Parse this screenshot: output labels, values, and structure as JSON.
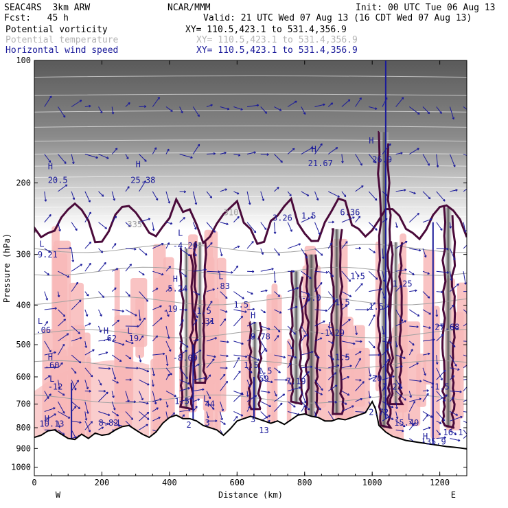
{
  "header": {
    "title": "SEAC4RS  3km ARW",
    "fcst": "Fcst:   45 h",
    "org": "NCAR/MMM",
    "init": "Init: 00 UTC Tue 06 Aug 13",
    "valid": "Valid: 21 UTC Wed 07 Aug 13 (16 CDT Wed 07 Aug 13)",
    "fields": [
      {
        "name": "Potential vorticity",
        "xy": "XY= 110.5,423.1 to 531.4,356.9",
        "color": "#000000"
      },
      {
        "name": "Potential temperature",
        "xy": "XY= 110.5,423.1 to 531.4,356.9",
        "color": "#b4b4b4"
      },
      {
        "name": "Horizontal wind speed",
        "xy": "XY= 110.5,423.1 to 531.4,356.9",
        "color": "#1a1a9a"
      }
    ]
  },
  "colors": {
    "pv_fill": "#f8b8b8",
    "pv_contour": "#4a0a3a",
    "theta": "#a0a0a0",
    "wind": "#1a1a9a",
    "terrain": "#000000"
  },
  "chart_data": {
    "type": "cross-section",
    "xlabel": "Distance (km)",
    "ylabel": "Pressure (hPa)",
    "xlim": [
      0,
      1280
    ],
    "ylim": [
      1050,
      100
    ],
    "y_scale": "log",
    "x_ticks": [
      0,
      200,
      400,
      600,
      800,
      1000,
      1200
    ],
    "y_ticks": [
      100,
      200,
      300,
      400,
      500,
      600,
      700,
      800,
      900,
      1000
    ],
    "end_labels": {
      "left": "W",
      "right": "E"
    },
    "terrain": [
      [
        0,
        845
      ],
      [
        20,
        835
      ],
      [
        40,
        815
      ],
      [
        60,
        810
      ],
      [
        80,
        830
      ],
      [
        100,
        850
      ],
      [
        120,
        855
      ],
      [
        140,
        830
      ],
      [
        160,
        850
      ],
      [
        180,
        825
      ],
      [
        200,
        835
      ],
      [
        220,
        830
      ],
      [
        240,
        810
      ],
      [
        260,
        795
      ],
      [
        280,
        790
      ],
      [
        300,
        810
      ],
      [
        320,
        830
      ],
      [
        340,
        845
      ],
      [
        360,
        820
      ],
      [
        380,
        780
      ],
      [
        400,
        755
      ],
      [
        420,
        745
      ],
      [
        440,
        760
      ],
      [
        460,
        760
      ],
      [
        480,
        770
      ],
      [
        500,
        790
      ],
      [
        520,
        800
      ],
      [
        540,
        810
      ],
      [
        560,
        835
      ],
      [
        580,
        805
      ],
      [
        600,
        770
      ],
      [
        620,
        760
      ],
      [
        640,
        750
      ],
      [
        660,
        760
      ],
      [
        680,
        770
      ],
      [
        700,
        780
      ],
      [
        720,
        770
      ],
      [
        740,
        785
      ],
      [
        760,
        765
      ],
      [
        780,
        745
      ],
      [
        800,
        740
      ],
      [
        820,
        750
      ],
      [
        840,
        755
      ],
      [
        860,
        770
      ],
      [
        880,
        770
      ],
      [
        900,
        760
      ],
      [
        920,
        765
      ],
      [
        940,
        755
      ],
      [
        960,
        745
      ],
      [
        980,
        735
      ],
      [
        1000,
        690
      ],
      [
        1010,
        720
      ],
      [
        1020,
        790
      ],
      [
        1040,
        820
      ],
      [
        1060,
        840
      ],
      [
        1080,
        850
      ],
      [
        1100,
        860
      ],
      [
        1120,
        865
      ],
      [
        1140,
        870
      ],
      [
        1160,
        875
      ],
      [
        1180,
        880
      ],
      [
        1200,
        885
      ],
      [
        1220,
        890
      ],
      [
        1240,
        893
      ],
      [
        1260,
        897
      ],
      [
        1280,
        902
      ]
    ],
    "annotations": [
      {
        "text": "H",
        "x": 40,
        "p": 185
      },
      {
        "text": "20.5",
        "x": 40,
        "p": 200
      },
      {
        "text": "H",
        "x": 300,
        "p": 183
      },
      {
        "text": "25.38",
        "x": 285,
        "p": 200
      },
      {
        "text": "H",
        "x": 820,
        "p": 168
      },
      {
        "text": "21.67",
        "x": 810,
        "p": 182
      },
      {
        "text": "H",
        "x": 990,
        "p": 160
      },
      {
        "text": "26.9",
        "x": 1000,
        "p": 178
      },
      {
        "text": "3.26",
        "x": 705,
        "p": 248
      },
      {
        "text": "1.5",
        "x": 790,
        "p": 245
      },
      {
        "text": "6.36",
        "x": 905,
        "p": 240
      },
      {
        "text": "L",
        "x": 15,
        "p": 287
      },
      {
        "text": "9.21",
        "x": 10,
        "p": 305
      },
      {
        "text": "L",
        "x": 425,
        "p": 270
      },
      {
        "text": "-4.20",
        "x": 410,
        "p": 290
      },
      {
        "text": "H",
        "x": 410,
        "p": 350
      },
      {
        "text": "5.24",
        "x": 395,
        "p": 370
      },
      {
        "text": "L",
        "x": 545,
        "p": 345
      },
      {
        "text": ".83",
        "x": 535,
        "p": 365
      },
      {
        "text": "1.5",
        "x": 935,
        "p": 345
      },
      {
        "text": "1.25",
        "x": 1060,
        "p": 360
      },
      {
        "text": "-4.0",
        "x": 790,
        "p": 390
      },
      {
        "text": "1.5",
        "x": 890,
        "p": 400
      },
      {
        "text": "1.5",
        "x": 590,
        "p": 405
      },
      {
        "text": ".19",
        "x": 380,
        "p": 415
      },
      {
        "text": "1.5",
        "x": 480,
        "p": 420
      },
      {
        "text": "1.5",
        "x": 990,
        "p": 410
      },
      {
        "text": ".31",
        "x": 490,
        "p": 445
      },
      {
        "text": "L",
        "x": 10,
        "p": 445
      },
      {
        "text": ".06",
        "x": 5,
        "p": 468
      },
      {
        "text": "H",
        "x": 640,
        "p": 430
      },
      {
        "text": "9.78",
        "x": 640,
        "p": 485
      },
      {
        "text": "L",
        "x": 870,
        "p": 455
      },
      {
        "text": "-1.29",
        "x": 845,
        "p": 475
      },
      {
        "text": "27.68",
        "x": 1185,
        "p": 460
      },
      {
        "text": "H",
        "x": 205,
        "p": 470
      },
      {
        "text": ".62",
        "x": 200,
        "p": 490
      },
      {
        "text": "L",
        "x": 275,
        "p": 470
      },
      {
        "text": ".19",
        "x": 265,
        "p": 490
      },
      {
        "text": "H",
        "x": 40,
        "p": 545
      },
      {
        "text": ".60",
        "x": 30,
        "p": 570
      },
      {
        "text": "-8.09",
        "x": 410,
        "p": 548
      },
      {
        "text": "1.5",
        "x": 620,
        "p": 570
      },
      {
        "text": "1.5",
        "x": 890,
        "p": 545
      },
      {
        "text": "1.5",
        "x": 660,
        "p": 590
      },
      {
        "text": "L",
        "x": 45,
        "p": 617
      },
      {
        "text": "-12",
        "x": 40,
        "p": 645
      },
      {
        "text": "59",
        "x": 665,
        "p": 617
      },
      {
        "text": "7.19",
        "x": 745,
        "p": 625
      },
      {
        "text": "-20",
        "x": 985,
        "p": 615
      },
      {
        "text": "7.23",
        "x": 1030,
        "p": 645
      },
      {
        "text": "-1.5",
        "x": 1170,
        "p": 645
      },
      {
        "text": "1.5",
        "x": 415,
        "p": 700
      },
      {
        "text": "L",
        "x": 500,
        "p": 690
      },
      {
        "text": "44",
        "x": 505,
        "p": 710
      },
      {
        "text": "2.72",
        "x": 990,
        "p": 745
      },
      {
        "text": "L",
        "x": 1105,
        "p": 765
      },
      {
        "text": "15.49",
        "x": 1065,
        "p": 790
      },
      {
        "text": "H",
        "x": 30,
        "p": 773
      },
      {
        "text": "10.13",
        "x": 15,
        "p": 795
      },
      {
        "text": "8.82",
        "x": 190,
        "p": 790
      },
      {
        "text": "L",
        "x": 245,
        "p": 790
      },
      {
        "text": "3",
        "x": 505,
        "p": 790
      },
      {
        "text": "2",
        "x": 450,
        "p": 800
      },
      {
        "text": "3",
        "x": 640,
        "p": 775
      },
      {
        "text": "13",
        "x": 665,
        "p": 825
      },
      {
        "text": "16.1",
        "x": 1210,
        "p": 835
      },
      {
        "text": "H",
        "x": 1150,
        "p": 855
      },
      {
        "text": "-35.9",
        "x": 1145,
        "p": 880
      }
    ],
    "theta_labels": [
      {
        "text": "335",
        "x": 275,
        "p": 257
      },
      {
        "text": "310",
        "x": 560,
        "p": 240
      }
    ],
    "pv_strong_columns": [
      {
        "x0": 440,
        "x1": 460,
        "p0": 290,
        "p1": 720
      },
      {
        "x0": 480,
        "x1": 500,
        "p0": 280,
        "p1": 620
      },
      {
        "x0": 640,
        "x1": 665,
        "p0": 440,
        "p1": 720
      },
      {
        "x0": 760,
        "x1": 790,
        "p0": 330,
        "p1": 700
      },
      {
        "x0": 800,
        "x1": 840,
        "p0": 300,
        "p1": 760
      },
      {
        "x0": 880,
        "x1": 910,
        "p0": 260,
        "p1": 740
      },
      {
        "x0": 1020,
        "x1": 1050,
        "p0": 150,
        "p1": 800
      },
      {
        "x0": 1060,
        "x1": 1080,
        "p0": 280,
        "p1": 700
      },
      {
        "x0": 1210,
        "x1": 1240,
        "p0": 230,
        "p1": 800
      }
    ]
  }
}
